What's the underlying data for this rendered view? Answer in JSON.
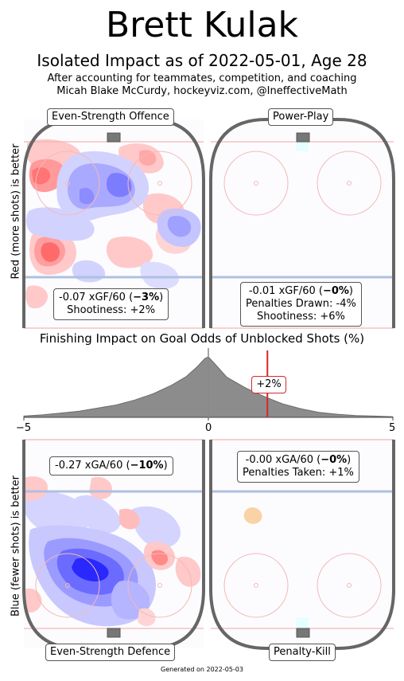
{
  "header": {
    "title": "Brett Kulak",
    "subtitle": "Isolated Impact as of 2022-05-01, Age 28",
    "note_line1": "After accounting for teammates, competition, and coaching",
    "note_line2": "Micah Blake McCurdy, hockeyviz.com, @IneffectiveMath"
  },
  "axes": {
    "top_ylabel": "Red (more shots) is better",
    "bottom_ylabel": "Blue (fewer shots) is better"
  },
  "panels": {
    "es_offence": {
      "label": "Even-Strength Offence",
      "line1_pre": "-0.07 xGF/60 (",
      "line1_bold": "−3%",
      "line1_post": ")",
      "line2": "Shootiness: +2%"
    },
    "pp": {
      "label": "Power-Play",
      "line1_pre": "-0.01 xGF/60 (",
      "line1_bold": "−0%",
      "line1_post": ")",
      "line2": "Penalties Drawn: -4%",
      "line3": "Shootiness: +6%"
    },
    "es_defence": {
      "label": "Even-Strength Defence",
      "line1_pre": "-0.27 xGA/60 (",
      "line1_bold": "−10%",
      "line1_post": ")"
    },
    "pk": {
      "label": "Penalty-Kill",
      "line1_pre": "-0.00 xGA/60 (",
      "line1_bold": "−0%",
      "line1_post": ")",
      "line2": "Penalties Taken: +1%"
    }
  },
  "chart_data": {
    "type": "area",
    "title": "Finishing Impact on Goal Odds of Unblocked Shots (%)",
    "xlim": [
      -5,
      5
    ],
    "x_ticks": [
      "−5",
      "0",
      "5"
    ],
    "distribution_x": [
      -5,
      -4.5,
      -4,
      -3.5,
      -3,
      -2.5,
      -2,
      -1.5,
      -1,
      -0.6,
      -0.3,
      -0.1,
      0,
      0.2,
      0.5,
      1,
      1.5,
      2,
      2.5,
      3,
      3.5,
      4,
      4.5,
      5
    ],
    "distribution_density": [
      0.02,
      0.04,
      0.07,
      0.1,
      0.15,
      0.2,
      0.28,
      0.38,
      0.52,
      0.66,
      0.82,
      0.95,
      0.98,
      0.85,
      0.65,
      0.48,
      0.34,
      0.22,
      0.14,
      0.08,
      0.05,
      0.03,
      0.02,
      0.01
    ],
    "player_value": 1.6,
    "player_label": "+2%",
    "colors": {
      "fill": "#8c8c8c",
      "marker": "#d62728"
    }
  },
  "footer": "Generated on 2022-05-03"
}
